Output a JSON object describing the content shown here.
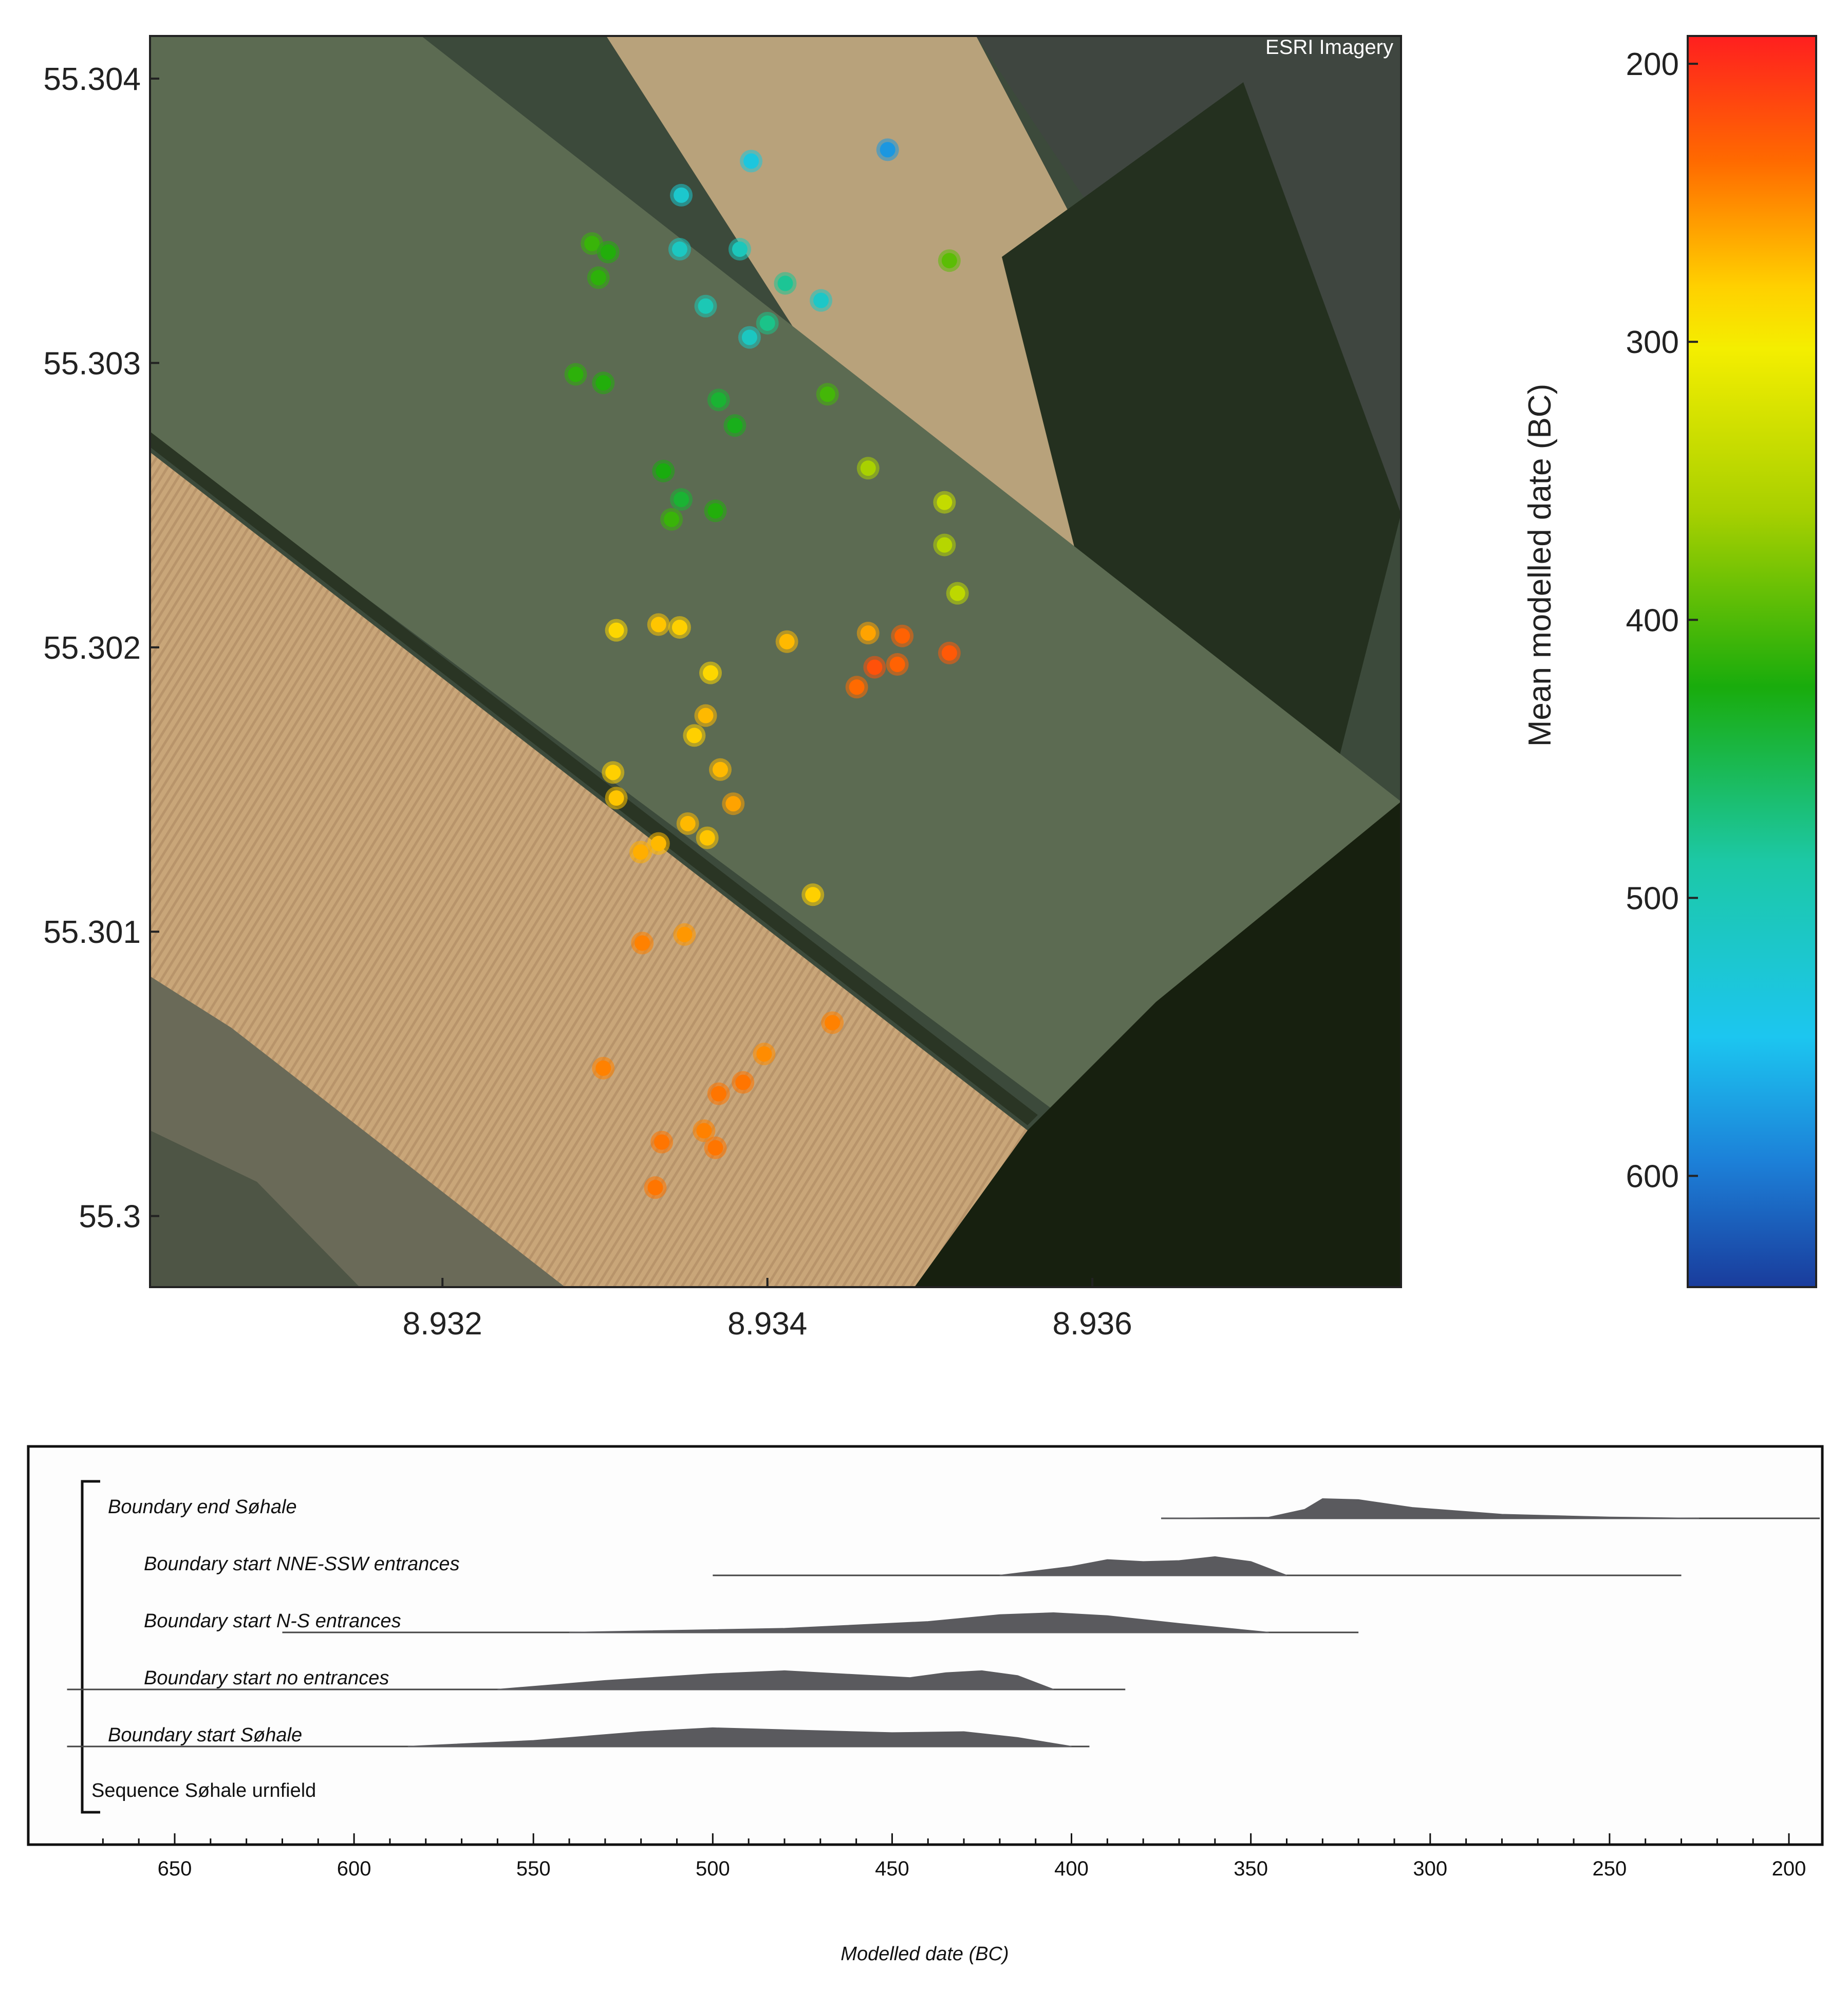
{
  "map_panel": {
    "imagery_credit": "ESRI Imagery",
    "colorbar_label": "Mean modelled date (BC)"
  },
  "oxcal_panel": {
    "xlabel": "Modelled date (BC)"
  },
  "chart_data": [
    {
      "type": "scatter",
      "title": "",
      "xlabel": "",
      "ylabel": "",
      "xlim": [
        8.9302,
        8.9379
      ],
      "ylim": [
        55.29975,
        55.30415
      ],
      "x_ticks": [
        8.932,
        8.934,
        8.936
      ],
      "y_ticks": [
        55.3,
        55.301,
        55.302,
        55.303,
        55.304
      ],
      "y_tick_labels": [
        "55.3",
        "55.301",
        "55.302",
        "55.303",
        "55.304"
      ],
      "background": "satellite imagery",
      "colorbar": {
        "label": "Mean modelled date (BC)",
        "range": [
          640,
          190
        ],
        "ticks": [
          200,
          300,
          400,
          500,
          600
        ],
        "colormap": "jet (red = 200 BC, blue = 600 BC)"
      },
      "points": [
        {
          "lon": 8.93474,
          "lat": 55.30375,
          "value": 580
        },
        {
          "lon": 8.9339,
          "lat": 55.30371,
          "value": 535
        },
        {
          "lon": 8.93347,
          "lat": 55.30359,
          "value": 520
        },
        {
          "lon": 8.93292,
          "lat": 55.30342,
          "value": 410
        },
        {
          "lon": 8.93302,
          "lat": 55.30339,
          "value": 420
        },
        {
          "lon": 8.93346,
          "lat": 55.3034,
          "value": 510
        },
        {
          "lon": 8.93383,
          "lat": 55.3034,
          "value": 505
        },
        {
          "lon": 8.93512,
          "lat": 55.30336,
          "value": 395
        },
        {
          "lon": 8.93296,
          "lat": 55.3033,
          "value": 415
        },
        {
          "lon": 8.93411,
          "lat": 55.30328,
          "value": 480
        },
        {
          "lon": 8.93433,
          "lat": 55.30322,
          "value": 515
        },
        {
          "lon": 8.93362,
          "lat": 55.3032,
          "value": 500
        },
        {
          "lon": 8.934,
          "lat": 55.30314,
          "value": 475
        },
        {
          "lon": 8.93389,
          "lat": 55.30309,
          "value": 510
        },
        {
          "lon": 8.93282,
          "lat": 55.30296,
          "value": 415
        },
        {
          "lon": 8.93299,
          "lat": 55.30293,
          "value": 420
        },
        {
          "lon": 8.9337,
          "lat": 55.30287,
          "value": 440
        },
        {
          "lon": 8.93437,
          "lat": 55.30289,
          "value": 405
        },
        {
          "lon": 8.9338,
          "lat": 55.30278,
          "value": 430
        },
        {
          "lon": 8.93336,
          "lat": 55.30262,
          "value": 425
        },
        {
          "lon": 8.93462,
          "lat": 55.30263,
          "value": 360
        },
        {
          "lon": 8.93347,
          "lat": 55.30252,
          "value": 440
        },
        {
          "lon": 8.93368,
          "lat": 55.30248,
          "value": 420
        },
        {
          "lon": 8.93341,
          "lat": 55.30245,
          "value": 410
        },
        {
          "lon": 8.93509,
          "lat": 55.30251,
          "value": 340
        },
        {
          "lon": 8.93509,
          "lat": 55.30236,
          "value": 350
        },
        {
          "lon": 8.93517,
          "lat": 55.30219,
          "value": 345
        },
        {
          "lon": 8.93307,
          "lat": 55.30206,
          "value": 285
        },
        {
          "lon": 8.93333,
          "lat": 55.30208,
          "value": 275
        },
        {
          "lon": 8.93346,
          "lat": 55.30207,
          "value": 280
        },
        {
          "lon": 8.93462,
          "lat": 55.30205,
          "value": 260
        },
        {
          "lon": 8.93483,
          "lat": 55.30204,
          "value": 230
        },
        {
          "lon": 8.93412,
          "lat": 55.30202,
          "value": 270
        },
        {
          "lon": 8.93512,
          "lat": 55.30198,
          "value": 225
        },
        {
          "lon": 8.93466,
          "lat": 55.30193,
          "value": 220
        },
        {
          "lon": 8.9348,
          "lat": 55.30194,
          "value": 230
        },
        {
          "lon": 8.93365,
          "lat": 55.30191,
          "value": 285
        },
        {
          "lon": 8.93455,
          "lat": 55.30186,
          "value": 235
        },
        {
          "lon": 8.93362,
          "lat": 55.30176,
          "value": 270
        },
        {
          "lon": 8.93355,
          "lat": 55.30169,
          "value": 280
        },
        {
          "lon": 8.93305,
          "lat": 55.30156,
          "value": 280
        },
        {
          "lon": 8.93371,
          "lat": 55.30157,
          "value": 270
        },
        {
          "lon": 8.93307,
          "lat": 55.30147,
          "value": 275
        },
        {
          "lon": 8.93379,
          "lat": 55.30145,
          "value": 260
        },
        {
          "lon": 8.93351,
          "lat": 55.30138,
          "value": 270
        },
        {
          "lon": 8.93363,
          "lat": 55.30133,
          "value": 275
        },
        {
          "lon": 8.93333,
          "lat": 55.30131,
          "value": 270
        },
        {
          "lon": 8.93322,
          "lat": 55.30128,
          "value": 265
        },
        {
          "lon": 8.93428,
          "lat": 55.30113,
          "value": 280
        },
        {
          "lon": 8.93349,
          "lat": 55.30099,
          "value": 255
        },
        {
          "lon": 8.93323,
          "lat": 55.30096,
          "value": 245
        },
        {
          "lon": 8.9344,
          "lat": 55.30068,
          "value": 245
        },
        {
          "lon": 8.93398,
          "lat": 55.30057,
          "value": 250
        },
        {
          "lon": 8.93299,
          "lat": 55.30052,
          "value": 245
        },
        {
          "lon": 8.93385,
          "lat": 55.30047,
          "value": 240
        },
        {
          "lon": 8.9337,
          "lat": 55.30043,
          "value": 240
        },
        {
          "lon": 8.93361,
          "lat": 55.3003,
          "value": 245
        },
        {
          "lon": 8.93335,
          "lat": 55.30026,
          "value": 240
        },
        {
          "lon": 8.93368,
          "lat": 55.30024,
          "value": 240
        },
        {
          "lon": 8.93331,
          "lat": 55.3001,
          "value": 240
        }
      ]
    },
    {
      "type": "area",
      "title": "",
      "xlabel": "Modelled date (BC)",
      "xlim": [
        680,
        190
      ],
      "x_ticks": [
        650,
        600,
        550,
        500,
        450,
        400,
        350,
        300,
        250,
        200
      ],
      "bracket_label": "Sequence Søhale urnfield",
      "series": [
        {
          "name": "Boundary end Søhale",
          "range": [
            375,
            190
          ],
          "x": [
            375,
            345,
            335,
            330,
            320,
            305,
            280,
            250,
            225
          ],
          "y": [
            0.0,
            0.05,
            0.45,
            1.0,
            0.95,
            0.55,
            0.2,
            0.06,
            0.0
          ]
        },
        {
          "name": "Boundary start NNE-SSW entrances",
          "range": [
            500,
            230
          ],
          "x": [
            420,
            400,
            390,
            380,
            370,
            360,
            350,
            340
          ],
          "y": [
            0.0,
            0.45,
            0.8,
            0.7,
            0.75,
            0.95,
            0.7,
            0.0
          ]
        },
        {
          "name": "Boundary start N-S entrances",
          "range": [
            620,
            320
          ],
          "x": [
            540,
            480,
            440,
            420,
            405,
            390,
            370,
            345
          ],
          "y": [
            0.0,
            0.2,
            0.55,
            0.9,
            1.0,
            0.85,
            0.45,
            0.0
          ]
        },
        {
          "name": "Boundary start no entrances",
          "range": [
            680,
            385
          ],
          "x": [
            560,
            530,
            500,
            480,
            460,
            445,
            435,
            425,
            415,
            405
          ],
          "y": [
            0.0,
            0.45,
            0.8,
            0.95,
            0.75,
            0.6,
            0.85,
            0.95,
            0.7,
            0.0
          ]
        },
        {
          "name": "Boundary start Søhale",
          "range": [
            680,
            395
          ],
          "x": [
            585,
            550,
            520,
            500,
            480,
            450,
            430,
            415,
            400
          ],
          "y": [
            0.0,
            0.3,
            0.75,
            0.95,
            0.85,
            0.7,
            0.75,
            0.45,
            0.0
          ]
        }
      ]
    }
  ]
}
